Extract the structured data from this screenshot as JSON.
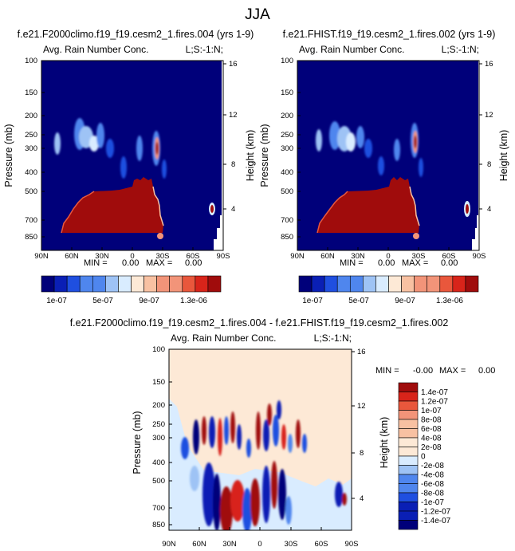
{
  "figure_title": "JJA",
  "colors": {
    "navy": "#00007a",
    "deep_blue": "#0a1fb5",
    "blue": "#1f4fe0",
    "mid_blue": "#4f86ee",
    "light_blue": "#9ec3f5",
    "pale_blue": "#d9ecff",
    "cream": "#fde9d6",
    "peach": "#f8c1a2",
    "salmon": "#f29479",
    "orange_red": "#e9573c",
    "red": "#d8241a",
    "dark_red": "#a00c0c"
  },
  "chart_data": [
    {
      "id": "panel-left",
      "type": "heatmap",
      "title": "f.e21.F2000climo.f19_f19.cesm2_1.fires.004 (yrs 1-9)",
      "subtitle_left": "Avg. Rain Number Conc.",
      "subtitle_right": "L;S:-1:N;",
      "ylabel": "Pressure (mb)",
      "ylabel_right": "Height (km)",
      "x_ticks": [
        "90N",
        "60N",
        "30N",
        "0",
        "30S",
        "60S",
        "90S"
      ],
      "y_ticks": [
        "100",
        "150",
        "200",
        "250",
        "300",
        "400",
        "500",
        "700",
        "850"
      ],
      "y_ticks_right": [
        "16",
        "12",
        "8",
        "4"
      ],
      "stats": {
        "min_label": "MIN =",
        "min": "0.00",
        "max_label": "MAX =",
        "max": "0.00"
      },
      "colorbar_labels": [
        "1e-07",
        "5e-07",
        "9e-07",
        "1.3e-06"
      ]
    },
    {
      "id": "panel-right",
      "type": "heatmap",
      "title": "f.e21.FHIST.f19_f19.cesm2_1.fires.002 (yrs 1-9)",
      "subtitle_left": "Avg. Rain Number Conc.",
      "subtitle_right": "L;S:-1:N;",
      "ylabel": "Pressure (mb)",
      "ylabel_right": "Height (km)",
      "x_ticks": [
        "90N",
        "60N",
        "30N",
        "0",
        "30S",
        "60S",
        "90S"
      ],
      "y_ticks": [
        "100",
        "150",
        "200",
        "250",
        "300",
        "400",
        "500",
        "700",
        "850"
      ],
      "y_ticks_right": [
        "16",
        "12",
        "8",
        "4"
      ],
      "stats": {
        "min_label": "MIN =",
        "min": "0.00",
        "max_label": "MAX =",
        "max": "0.00"
      },
      "colorbar_labels": [
        "1e-07",
        "5e-07",
        "9e-07",
        "1.3e-06"
      ]
    },
    {
      "id": "panel-diff",
      "type": "heatmap",
      "title": "f.e21.F2000climo.f19_f19.cesm2_1.fires.004 - f.e21.FHIST.f19_f19.cesm2_1.fires.002",
      "subtitle_left": "Avg. Rain Number Conc.",
      "subtitle_right": "L;S:-1:N;",
      "ylabel": "Pressure (mb)",
      "ylabel_right": "Height (km)",
      "x_ticks": [
        "90N",
        "60N",
        "30N",
        "0",
        "30S",
        "60S",
        "90S"
      ],
      "y_ticks": [
        "100",
        "150",
        "200",
        "250",
        "300",
        "400",
        "500",
        "700",
        "850"
      ],
      "y_ticks_right": [
        "16",
        "12",
        "8",
        "4"
      ],
      "stats": {
        "min_label": "MIN =",
        "min": "-0.00",
        "max_label": "MAX =",
        "max": "0.00"
      },
      "colorbar_labels": [
        "1.4e-07",
        "1.2e-07",
        "1e-07",
        "8e-08",
        "6e-08",
        "4e-08",
        "2e-08",
        "0",
        "-2e-08",
        "-4e-08",
        "-6e-08",
        "-8e-08",
        "-1e-07",
        "-1.2e-07",
        "-1.4e-07"
      ]
    }
  ]
}
